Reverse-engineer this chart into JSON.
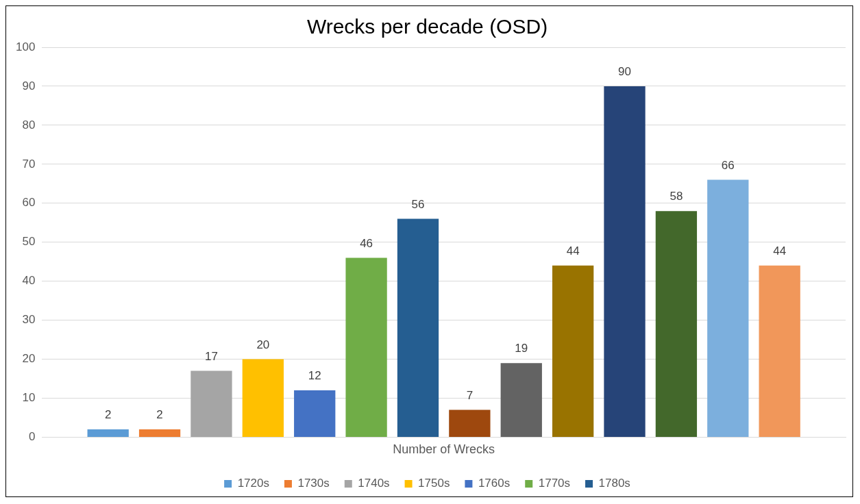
{
  "chart_data": {
    "type": "bar",
    "title": "Wrecks per decade (OSD)",
    "categories": [
      "Number of Wrecks"
    ],
    "series": [
      {
        "name": "1720s",
        "color": "#5b9bd5",
        "values": [
          2
        ]
      },
      {
        "name": "1730s",
        "color": "#ed7d31",
        "values": [
          2
        ]
      },
      {
        "name": "1740s",
        "color": "#a5a5a5",
        "values": [
          17
        ]
      },
      {
        "name": "1750s",
        "color": "#ffc000",
        "values": [
          20
        ]
      },
      {
        "name": "1760s",
        "color": "#4472c4",
        "values": [
          12
        ]
      },
      {
        "name": "1770s",
        "color": "#70ad47",
        "values": [
          46
        ]
      },
      {
        "name": "1780s",
        "color": "#255e91",
        "values": [
          56
        ]
      },
      {
        "color": "#9e480e",
        "values": [
          7
        ]
      },
      {
        "color": "#636363",
        "values": [
          19
        ]
      },
      {
        "color": "#997300",
        "values": [
          44
        ]
      },
      {
        "color": "#264478",
        "values": [
          90
        ]
      },
      {
        "color": "#43682b",
        "values": [
          58
        ]
      },
      {
        "color": "#7cafdd",
        "values": [
          66
        ]
      },
      {
        "color": "#f1975a",
        "values": [
          44
        ]
      }
    ],
    "ylim": [
      0,
      100
    ],
    "yticks": [
      0,
      10,
      20,
      30,
      40,
      50,
      60,
      70,
      80,
      90,
      100
    ],
    "grid": "y",
    "legend": "bottom",
    "data_labels": true
  }
}
